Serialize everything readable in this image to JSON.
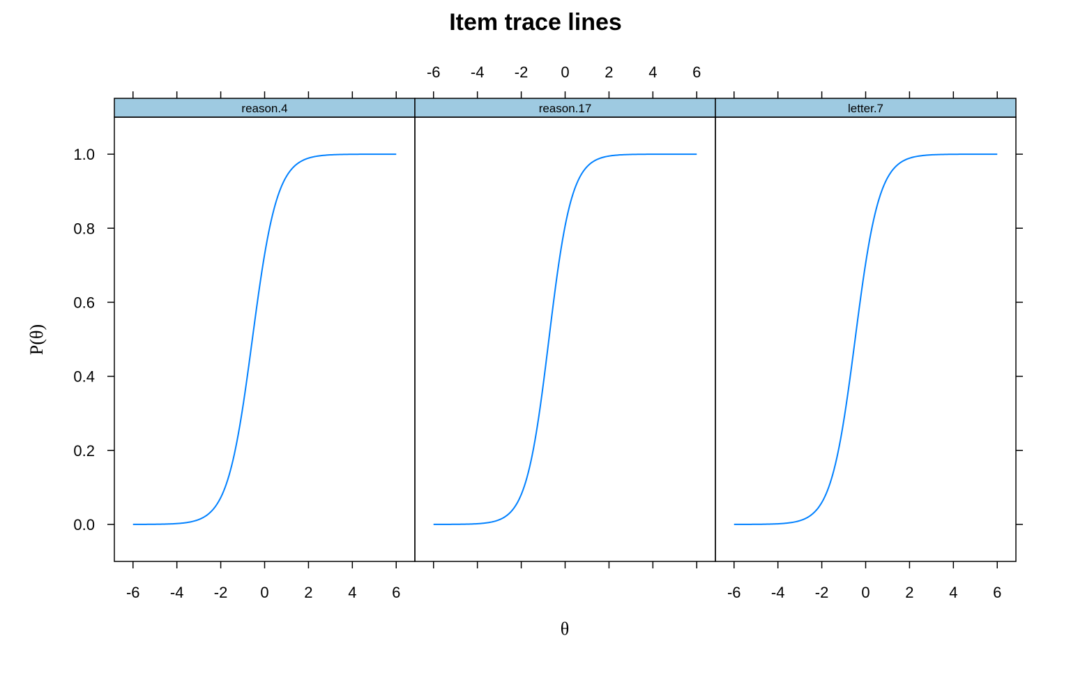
{
  "chart_data": {
    "type": "line",
    "title": "Item trace lines",
    "xlabel": "θ",
    "ylabel": "P(θ)",
    "xlim": [
      -6.85,
      6.85
    ],
    "ylim": [
      -0.1,
      1.1
    ],
    "x_ticks": [
      -6,
      -4,
      -2,
      0,
      2,
      4,
      6
    ],
    "y_ticks": [
      0.0,
      0.2,
      0.4,
      0.6,
      0.8,
      1.0
    ],
    "y_tick_labels": [
      "0.0",
      "0.2",
      "0.4",
      "0.6",
      "0.8",
      "1.0"
    ],
    "x_tick_labels": [
      "-6",
      "-4",
      "-2",
      "0",
      "2",
      "4",
      "6"
    ],
    "line_color": "#0080ff",
    "strip_color": "#9ecae1",
    "panels": [
      {
        "name": "reason.4",
        "a": 1.77,
        "b": -0.56,
        "x_range": [
          -6,
          6
        ]
      },
      {
        "name": "reason.17",
        "a": 1.93,
        "b": -0.74,
        "x_range": [
          -6,
          6
        ]
      },
      {
        "name": "letter.7",
        "a": 1.82,
        "b": -0.48,
        "x_range": [
          -6,
          6
        ]
      }
    ]
  }
}
